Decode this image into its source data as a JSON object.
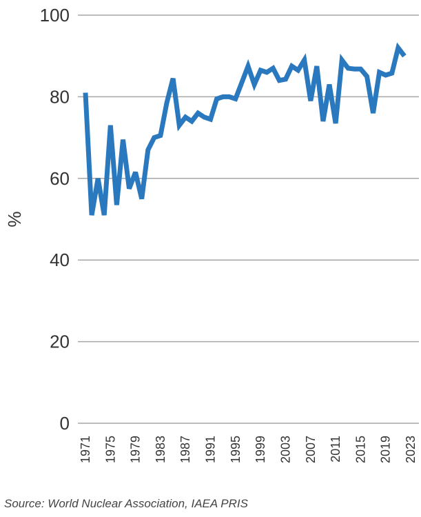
{
  "chart_data": {
    "type": "line",
    "title": "",
    "xlabel": "",
    "ylabel": "%",
    "ylim": [
      0,
      100
    ],
    "yticks": [
      "0",
      "20",
      "40",
      "60",
      "80",
      "100"
    ],
    "xticks": [
      "1971",
      "1975",
      "1979",
      "1983",
      "1987",
      "1991",
      "1995",
      "1999",
      "2003",
      "2007",
      "2011",
      "2015",
      "2019",
      "2023"
    ],
    "grid": true,
    "series": [
      {
        "color": "#2a78be",
        "x": [
          1971,
          1972,
          1973,
          1974,
          1975,
          1976,
          1977,
          1978,
          1979,
          1980,
          1981,
          1982,
          1983,
          1984,
          1985,
          1986,
          1987,
          1988,
          1989,
          1990,
          1991,
          1992,
          1993,
          1994,
          1995,
          1996,
          1997,
          1998,
          1999,
          2000,
          2001,
          2002,
          2003,
          2004,
          2005,
          2006,
          2007,
          2008,
          2009,
          2010,
          2011,
          2012,
          2013,
          2014,
          2015,
          2016,
          2017,
          2018,
          2019,
          2020,
          2021,
          2022
        ],
        "values": [
          81,
          51,
          60,
          51,
          73,
          53.5,
          69.5,
          57.5,
          61.5,
          55,
          67,
          70,
          70.5,
          78.5,
          84.5,
          73,
          75,
          74,
          76,
          75,
          74.5,
          79.5,
          80,
          80,
          79.5,
          83.5,
          87.5,
          83,
          86.5,
          86,
          87,
          84,
          84.3,
          87.5,
          86.5,
          89,
          79,
          87.5,
          74,
          83,
          73.5,
          89,
          87,
          86.8,
          86.8,
          85,
          76,
          86,
          85.3,
          85.8,
          92,
          90
        ]
      }
    ]
  },
  "source": "Source: World Nuclear Association, IAEA PRIS"
}
